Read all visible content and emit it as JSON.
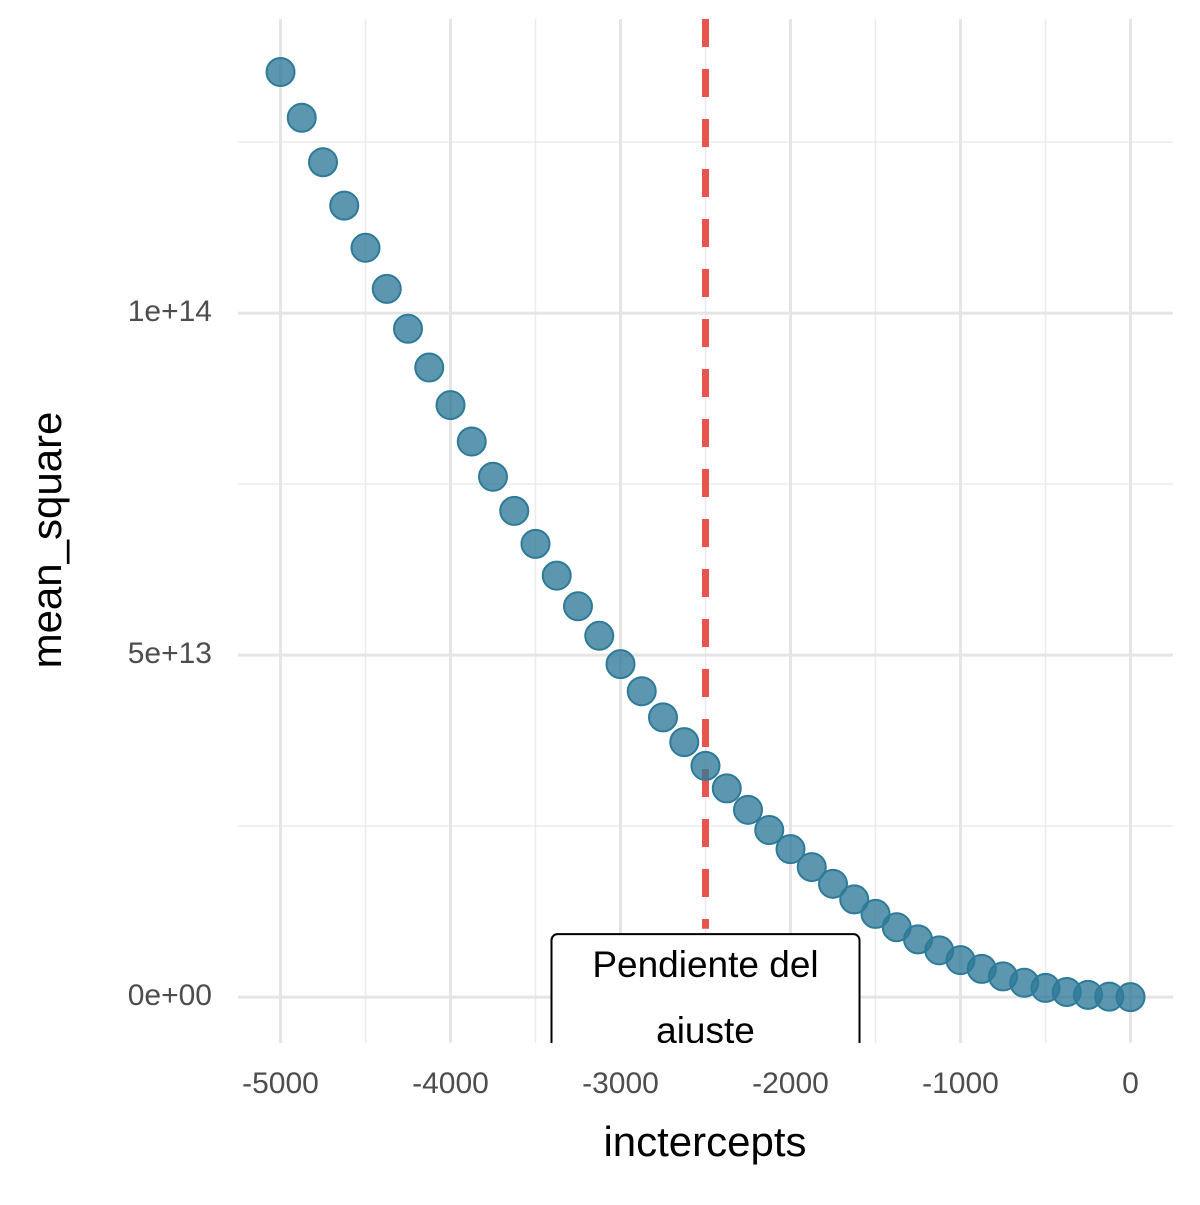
{
  "chart_data": {
    "type": "scatter",
    "x_label": "inctercepts",
    "y_label": "mean_square",
    "x": [
      -5000,
      -4875,
      -4750,
      -4625,
      -4500,
      -4375,
      -4250,
      -4125,
      -4000,
      -3875,
      -3750,
      -3625,
      -3500,
      -3375,
      -3250,
      -3125,
      -3000,
      -2875,
      -2750,
      -2625,
      -2500,
      -2375,
      -2250,
      -2125,
      -2000,
      -1875,
      -1750,
      -1625,
      -1500,
      -1375,
      -1250,
      -1125,
      -1000,
      -875,
      -750,
      -625,
      -500,
      -375,
      -250,
      -125,
      0
    ],
    "values": [
      135250000000000.0,
      128570000000000.0,
      122060000000000.0,
      115720000000000.0,
      109550000000000.0,
      103550000000000.0,
      97720000000000.0,
      92050000000000.0,
      86560000000000.0,
      81230000000000.0,
      76080000000000.0,
      71090000000000.0,
      66270000000000.0,
      61620000000000.0,
      57140000000000.0,
      52830000000000.0,
      48690000000000.0,
      44720000000000.0,
      40910000000000.0,
      37280000000000.0,
      33810000000000.0,
      30520000000000.0,
      27390000000000.0,
      24430000000000.0,
      21640000000000.0,
      19020000000000.0,
      16570000000000.0,
      14290000000000.0,
      12170000000000.0,
      10230000000000.0,
      8450000000000.0,
      6850000000000.0,
      5410000000000.0,
      4140000000000.0,
      3040000000000.0,
      2110000000000.0,
      1350000000000.0,
      760000000000.0,
      340000000000.0,
      80000000000.0,
      0
    ],
    "color": "#2e7a99",
    "xlim": [
      -5250,
      250
    ],
    "ylim": [
      -6700000000000.0,
      143000000000000.0
    ],
    "xticks": [
      -5000,
      -4000,
      -3000,
      -2000,
      -1000,
      0
    ],
    "x_minor_ticks": [
      -4500,
      -3500,
      -2500,
      -1500,
      -500
    ],
    "yticks": [
      {
        "value": 0,
        "label": "0e+00"
      },
      {
        "value": 50000000000000.0,
        "label": "5e+13"
      },
      {
        "value": 100000000000000.0,
        "label": "1e+14"
      }
    ],
    "y_minor_ticks": [
      25000000000000.0,
      75000000000000.0,
      125000000000000.0
    ],
    "grid": true,
    "vline": {
      "x": -2500,
      "y_from": 10000000000000.0,
      "color": "#e8554e"
    },
    "annotation": {
      "x": -2500,
      "y": 0,
      "lines": [
        "Pendiente del",
        "ajuste"
      ]
    }
  }
}
